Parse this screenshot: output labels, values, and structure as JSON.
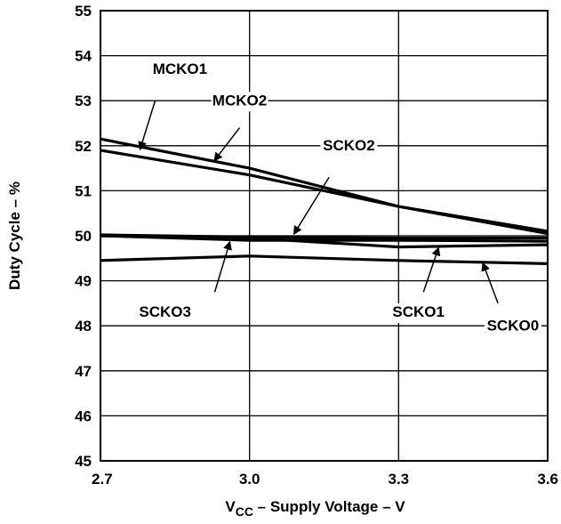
{
  "chart_data": {
    "type": "line",
    "xlabel_main": "V",
    "xlabel_sub": "CC",
    "xlabel_rest": " – Supply Voltage – V",
    "ylabel": "Duty Cycle – %",
    "xlim": [
      2.7,
      3.6
    ],
    "ylim": [
      45,
      55
    ],
    "x_ticks": [
      "2.7",
      "3.0",
      "3.3",
      "3.6"
    ],
    "y_ticks": [
      "45",
      "46",
      "47",
      "48",
      "49",
      "50",
      "51",
      "52",
      "53",
      "54",
      "55"
    ],
    "grid": true,
    "series": [
      {
        "name": "MCKO1",
        "x": [
          2.7,
          3.0,
          3.3,
          3.6
        ],
        "y": [
          52.15,
          51.5,
          50.65,
          50.1
        ]
      },
      {
        "name": "MCKO2",
        "x": [
          2.7,
          3.0,
          3.3,
          3.6
        ],
        "y": [
          51.9,
          51.35,
          50.65,
          50.05
        ]
      },
      {
        "name": "SCKO2",
        "x": [
          2.7,
          3.0,
          3.3,
          3.6
        ],
        "y": [
          50.02,
          49.97,
          49.95,
          49.95
        ]
      },
      {
        "name": "SCKO3",
        "x": [
          2.7,
          3.0,
          3.3,
          3.6
        ],
        "y": [
          50.0,
          49.9,
          49.9,
          49.88
        ]
      },
      {
        "name": "SCKO1",
        "x": [
          2.7,
          3.0,
          3.3,
          3.6
        ],
        "y": [
          50.0,
          49.95,
          49.75,
          49.8
        ]
      },
      {
        "name": "SCKO0",
        "x": [
          2.7,
          3.0,
          3.3,
          3.6
        ],
        "y": [
          49.45,
          49.55,
          49.45,
          49.38
        ]
      }
    ],
    "annotations": [
      {
        "label": "MCKO1",
        "text_x": 2.86,
        "text_y": 53.6,
        "tail_x": 2.81,
        "tail_y": 53.0,
        "head_x": 2.78,
        "head_y": 51.93
      },
      {
        "label": "MCKO2",
        "text_x": 2.98,
        "text_y": 52.9,
        "tail_x": 2.98,
        "tail_y": 52.4,
        "head_x": 2.93,
        "head_y": 51.68
      },
      {
        "label": "SCKO2",
        "text_x": 3.2,
        "text_y": 51.9,
        "tail_x": 3.16,
        "tail_y": 51.3,
        "head_x": 3.09,
        "head_y": 50.05
      },
      {
        "label": "SCKO3",
        "text_x": 2.83,
        "text_y": 48.2,
        "tail_x": 2.93,
        "tail_y": 48.75,
        "head_x": 2.96,
        "head_y": 49.85
      },
      {
        "label": "SCKO1",
        "text_x": 3.34,
        "text_y": 48.2,
        "tail_x": 3.35,
        "tail_y": 48.75,
        "head_x": 3.38,
        "head_y": 49.72
      },
      {
        "label": "SCKO0",
        "text_x": 3.53,
        "text_y": 47.9,
        "tail_x": 3.5,
        "tail_y": 48.5,
        "head_x": 3.47,
        "head_y": 49.38
      }
    ]
  }
}
